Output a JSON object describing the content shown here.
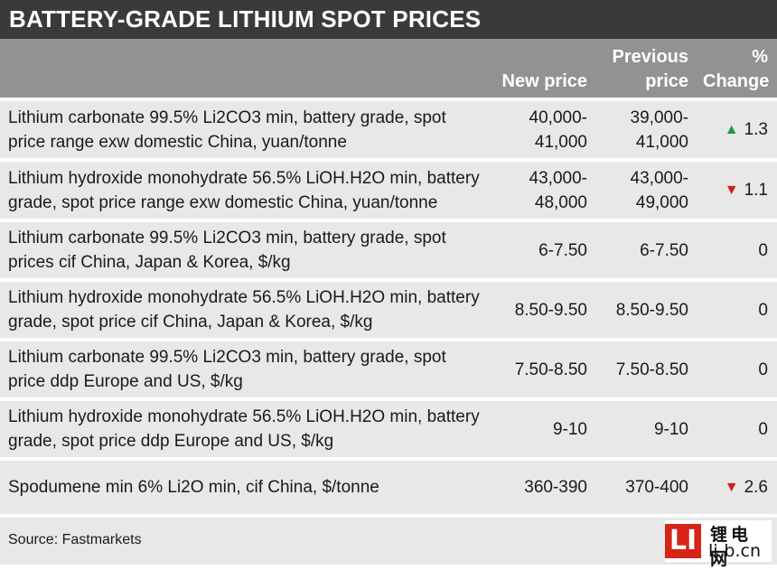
{
  "title": "BATTERY-GRADE LITHIUM SPOT PRICES",
  "headers": {
    "new_price": "New price",
    "previous_line1": "Previous",
    "previous_line2": "price",
    "change_line1": "%",
    "change_line2": "Change"
  },
  "rows": [
    {
      "desc": "Lithium carbonate 99.5% Li2CO3 min, battery grade, spot price range exw domestic China, yuan/tonne",
      "new_a": "40,000-",
      "new_b": "41,000",
      "prev_a": "39,000-",
      "prev_b": "41,000",
      "direction": "up",
      "arrow": "▲",
      "change": "1.3"
    },
    {
      "desc": "Lithium hydroxide monohydrate 56.5% LiOH.H2O min, battery grade, spot price range exw domestic China, yuan/tonne",
      "new_a": "43,000-",
      "new_b": "48,000",
      "prev_a": "43,000-",
      "prev_b": "49,000",
      "direction": "down",
      "arrow": "▼",
      "change": "1.1"
    },
    {
      "desc": "Lithium carbonate 99.5% Li2CO3 min, battery grade, spot prices cif China, Japan & Korea, $/kg",
      "new_a": "6-7.50",
      "new_b": "",
      "prev_a": "6-7.50",
      "prev_b": "",
      "direction": "none",
      "arrow": "",
      "change": "0"
    },
    {
      "desc": "Lithium hydroxide monohydrate 56.5% LiOH.H2O min, battery grade, spot price cif China, Japan & Korea, $/kg",
      "new_a": "8.50-9.50",
      "new_b": "",
      "prev_a": "8.50-9.50",
      "prev_b": "",
      "direction": "none",
      "arrow": "",
      "change": "0"
    },
    {
      "desc": "Lithium carbonate 99.5% Li2CO3 min, battery grade, spot price ddp Europe and US, $/kg",
      "new_a": "7.50-8.50",
      "new_b": "",
      "prev_a": "7.50-8.50",
      "prev_b": "",
      "direction": "none",
      "arrow": "",
      "change": "0"
    },
    {
      "desc": "Lithium hydroxide monohydrate 56.5% LiOH.H2O min, battery grade, spot price ddp Europe and US, $/kg",
      "new_a": "9-10",
      "new_b": "",
      "prev_a": "9-10",
      "prev_b": "",
      "direction": "none",
      "arrow": "",
      "change": "0"
    },
    {
      "desc": "Spodumene min 6% Li2O min, cif China, $/tonne",
      "new_a": "360-390",
      "new_b": "",
      "prev_a": "370-400",
      "prev_b": "",
      "direction": "down",
      "arrow": "▼",
      "change": "2.6"
    }
  ],
  "source": "Source: Fastmarkets",
  "watermark": {
    "mark": "LI",
    "chinese": "锂电网",
    "url": "li-b.cn",
    "color": "#d62418"
  },
  "colors": {
    "title_bg": "#3a3a3a",
    "header_bg": "#929292",
    "row_bg": "#e8e8e8",
    "up": "#1f9a3a",
    "down": "#d01f1f"
  }
}
